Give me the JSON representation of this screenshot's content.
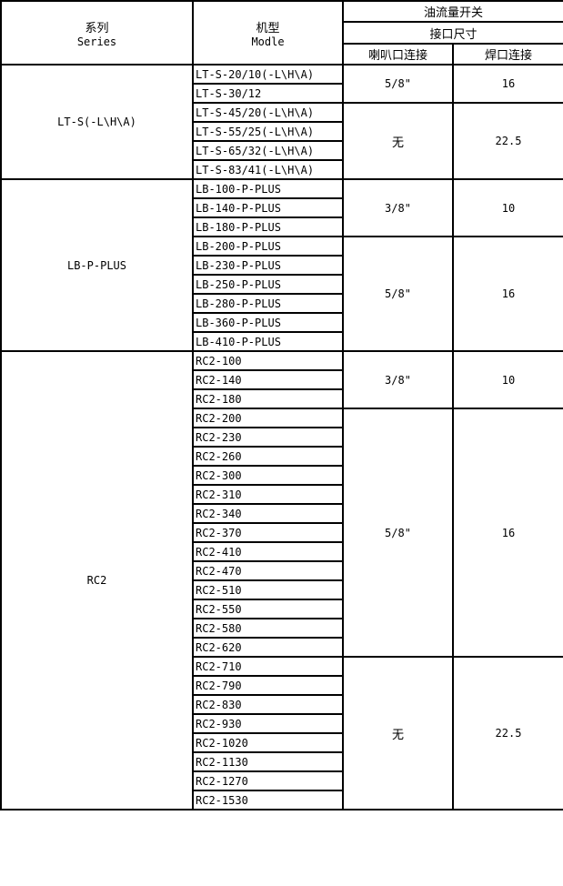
{
  "header": {
    "series_cn": "系列",
    "series_en": "Series",
    "model_cn": "机型",
    "model_en": "Modle",
    "switch": "油流量开关",
    "size": "接口尺寸",
    "flare": "喇叭口连接",
    "weld": "焊口连接"
  },
  "groups": [
    {
      "series": "LT-S(-L\\H\\A)",
      "blocks": [
        {
          "flare": "5/8\"",
          "weld": "16",
          "models": [
            "LT-S-20/10(-L\\H\\A)",
            "LT-S-30/12"
          ]
        },
        {
          "flare": "无",
          "weld": "22.5",
          "models": [
            "LT-S-45/20(-L\\H\\A)",
            "LT-S-55/25(-L\\H\\A)",
            "LT-S-65/32(-L\\H\\A)",
            "LT-S-83/41(-L\\H\\A)"
          ]
        }
      ]
    },
    {
      "series": "LB-P-PLUS",
      "blocks": [
        {
          "flare": "3/8\"",
          "weld": "10",
          "models": [
            "LB-100-P-PLUS",
            "LB-140-P-PLUS",
            "LB-180-P-PLUS"
          ]
        },
        {
          "flare": "5/8\"",
          "weld": "16",
          "models": [
            "LB-200-P-PLUS",
            "LB-230-P-PLUS",
            "LB-250-P-PLUS",
            "LB-280-P-PLUS",
            "LB-360-P-PLUS",
            "LB-410-P-PLUS"
          ]
        }
      ]
    },
    {
      "series": "RC2",
      "blocks": [
        {
          "flare": "3/8\"",
          "weld": "10",
          "models": [
            "RC2-100",
            "RC2-140",
            "RC2-180"
          ]
        },
        {
          "flare": "5/8\"",
          "weld": "16",
          "models": [
            "RC2-200",
            "RC2-230",
            "RC2-260",
            "RC2-300",
            "RC2-310",
            "RC2-340",
            "RC2-370",
            "RC2-410",
            "RC2-470",
            "RC2-510",
            "RC2-550",
            "RC2-580",
            "RC2-620"
          ]
        },
        {
          "flare": "无",
          "weld": "22.5",
          "models": [
            "RC2-710",
            "RC2-790",
            "RC2-830",
            "RC2-930",
            "RC2-1020",
            "RC2-1130",
            "RC2-1270",
            "RC2-1530"
          ]
        }
      ]
    }
  ]
}
